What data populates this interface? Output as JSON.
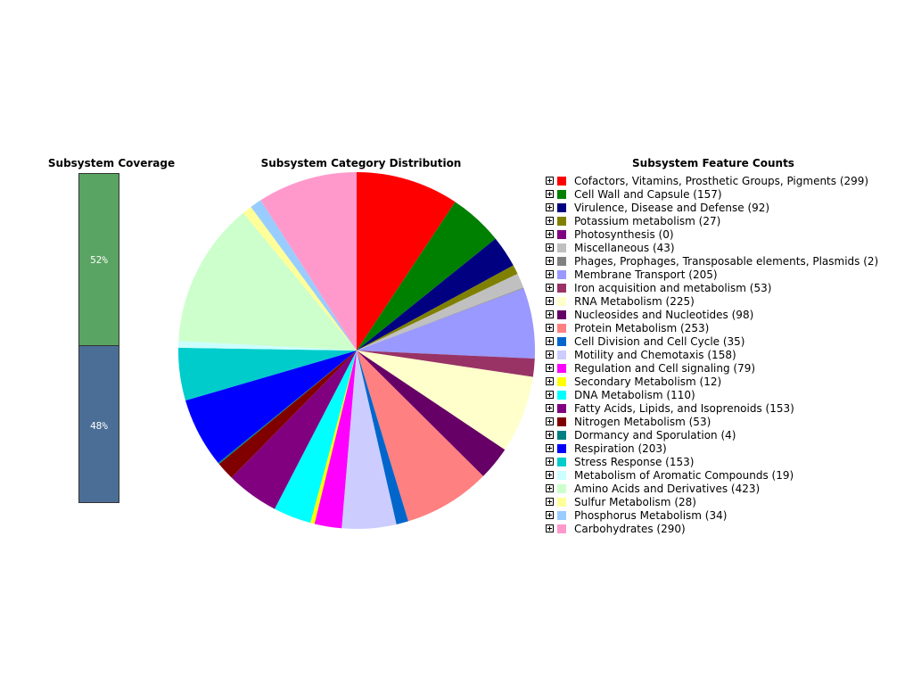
{
  "chart_data": [
    {
      "type": "bar",
      "title": "Subsystem Coverage",
      "series": [
        {
          "value": 52,
          "label": "52%",
          "color": "#5aa463"
        },
        {
          "value": 48,
          "label": "48%",
          "color": "#4b6e96"
        }
      ]
    },
    {
      "type": "pie",
      "title": "Subsystem Category Distribution",
      "slices": [
        {
          "label": "Cofactors, Vitamins, Prosthetic Groups, Pigments",
          "value": 299,
          "color": "#ff0000"
        },
        {
          "label": "Cell Wall and Capsule",
          "value": 157,
          "color": "#008000"
        },
        {
          "label": "Virulence, Disease and Defense",
          "value": 92,
          "color": "#000080"
        },
        {
          "label": "Potassium metabolism",
          "value": 27,
          "color": "#808000"
        },
        {
          "label": "Photosynthesis",
          "value": 0,
          "color": "#800080"
        },
        {
          "label": "Miscellaneous",
          "value": 43,
          "color": "#c0c0c0"
        },
        {
          "label": "Phages, Prophages, Transposable elements, Plasmids",
          "value": 2,
          "color": "#808080"
        },
        {
          "label": "Membrane Transport",
          "value": 205,
          "color": "#9999ff"
        },
        {
          "label": "Iron acquisition and metabolism",
          "value": 53,
          "color": "#993366"
        },
        {
          "label": "RNA Metabolism",
          "value": 225,
          "color": "#ffffcc"
        },
        {
          "label": "Nucleosides and Nucleotides",
          "value": 98,
          "color": "#660066"
        },
        {
          "label": "Protein Metabolism",
          "value": 253,
          "color": "#ff8080"
        },
        {
          "label": "Cell Division and Cell Cycle",
          "value": 35,
          "color": "#0066cc"
        },
        {
          "label": "Motility and Chemotaxis",
          "value": 158,
          "color": "#ccccff"
        },
        {
          "label": "Regulation and Cell signaling",
          "value": 79,
          "color": "#ff00ff"
        },
        {
          "label": "Secondary Metabolism",
          "value": 12,
          "color": "#ffff00"
        },
        {
          "label": "DNA Metabolism",
          "value": 110,
          "color": "#00ffff"
        },
        {
          "label": "Fatty Acids, Lipids, and Isoprenoids",
          "value": 153,
          "color": "#800080"
        },
        {
          "label": "Nitrogen Metabolism",
          "value": 53,
          "color": "#800000"
        },
        {
          "label": "Dormancy and Sporulation",
          "value": 4,
          "color": "#008080"
        },
        {
          "label": "Respiration",
          "value": 203,
          "color": "#0000ff"
        },
        {
          "label": "Stress Response",
          "value": 153,
          "color": "#00cccc"
        },
        {
          "label": "Metabolism of Aromatic Compounds",
          "value": 19,
          "color": "#ccffff"
        },
        {
          "label": "Amino Acids and Derivatives",
          "value": 423,
          "color": "#ccffcc"
        },
        {
          "label": "Sulfur Metabolism",
          "value": 28,
          "color": "#ffff99"
        },
        {
          "label": "Phosphorus Metabolism",
          "value": 34,
          "color": "#99ccff"
        },
        {
          "label": "Carbohydrates",
          "value": 290,
          "color": "#ff99cc"
        }
      ]
    }
  ],
  "legend": {
    "title": "Subsystem Feature Counts",
    "items": [
      "Cofactors, Vitamins, Prosthetic Groups, Pigments (299)",
      "Cell Wall and Capsule (157)",
      "Virulence, Disease and Defense (92)",
      "Potassium metabolism (27)",
      "Photosynthesis (0)",
      "Miscellaneous (43)",
      "Phages, Prophages, Transposable elements, Plasmids (2)",
      "Membrane Transport (205)",
      "Iron acquisition and metabolism (53)",
      "RNA Metabolism (225)",
      "Nucleosides and Nucleotides (98)",
      "Protein Metabolism (253)",
      "Cell Division and Cell Cycle (35)",
      "Motility and Chemotaxis (158)",
      "Regulation and Cell signaling (79)",
      "Secondary Metabolism (12)",
      "DNA Metabolism (110)",
      "Fatty Acids, Lipids, and Isoprenoids (153)",
      "Nitrogen Metabolism (53)",
      "Dormancy and Sporulation (4)",
      "Respiration (203)",
      "Stress Response (153)",
      "Metabolism of Aromatic Compounds (19)",
      "Amino Acids and Derivatives (423)",
      "Sulfur Metabolism (28)",
      "Phosphorus Metabolism (34)",
      "Carbohydrates (290)"
    ]
  }
}
